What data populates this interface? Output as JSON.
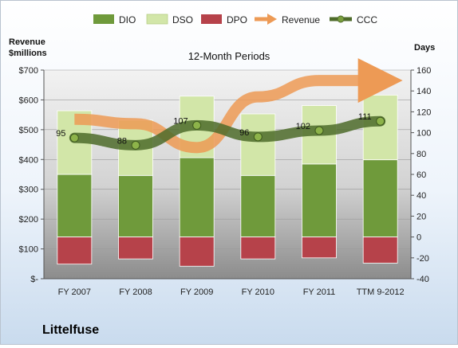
{
  "chart_data": {
    "type": "bar",
    "title": "12-Month Periods",
    "company": "Littelfuse",
    "left_axis_label": "Revenue\n$millions",
    "right_axis_label": "Days",
    "categories": [
      "FY 2007",
      "FY 2008",
      "FY 2009",
      "FY 2010",
      "FY 2011",
      "TTM 9-2012"
    ],
    "left_axis": {
      "ylim": [
        0,
        700
      ],
      "ticks": [
        "$-",
        "$100",
        "$200",
        "$300",
        "$400",
        "$500",
        "$600",
        "$700"
      ]
    },
    "right_axis": {
      "ylim": [
        -40,
        160
      ],
      "ticks": [
        "-40",
        "-20",
        "0",
        "20",
        "40",
        "60",
        "80",
        "100",
        "120",
        "140",
        "160"
      ]
    },
    "series": [
      {
        "name": "DIO",
        "kind": "bar",
        "color": "#6f9a3b",
        "values": [
          60,
          59,
          76,
          59,
          70,
          74
        ]
      },
      {
        "name": "DSO",
        "kind": "bar",
        "color": "#d2e6a8",
        "values": [
          61,
          53,
          59,
          59,
          56,
          62
        ]
      },
      {
        "name": "DPO",
        "kind": "bar",
        "color": "#b6424a",
        "values": [
          -26,
          -21,
          -28,
          -21,
          -20,
          -25
        ]
      },
      {
        "name": "Revenue",
        "kind": "arrow",
        "color": "#ed9a55",
        "values": [
          535,
          520,
          440,
          610,
          665,
          665
        ]
      },
      {
        "name": "CCC",
        "kind": "line",
        "color": "#4e6b2a",
        "values": [
          95,
          88,
          107,
          96,
          102,
          111
        ]
      }
    ],
    "ccc_labels": [
      "95",
      "88",
      "107",
      "96",
      "102",
      "111"
    ],
    "grid": true,
    "legend_position": "top"
  }
}
